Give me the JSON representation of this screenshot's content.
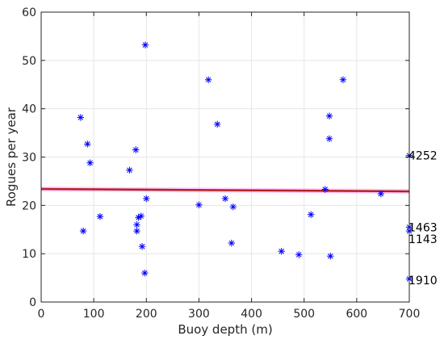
{
  "chart_data": {
    "type": "scatter",
    "title": "",
    "xlabel": "Buoy depth (m)",
    "ylabel": "Rogues per year",
    "xlim": [
      0,
      700
    ],
    "ylim": [
      0,
      60
    ],
    "xticks": [
      0,
      100,
      200,
      300,
      400,
      500,
      600,
      700
    ],
    "yticks": [
      0,
      10,
      20,
      30,
      40,
      50,
      60
    ],
    "grid": true,
    "colors": {
      "points": "#0000ff",
      "trend": "#b22222",
      "trend_band": "#ff66ff",
      "grid": "#e6e6e6"
    },
    "series": [
      {
        "marker": "asterisk",
        "points": [
          [
            75,
            38.2
          ],
          [
            80,
            14.7
          ],
          [
            88,
            32.7
          ],
          [
            93,
            28.8
          ],
          [
            112,
            17.7
          ],
          [
            168,
            27.3
          ],
          [
            180,
            31.5
          ],
          [
            182,
            16.0
          ],
          [
            182,
            14.7
          ],
          [
            185,
            17.5
          ],
          [
            190,
            17.8
          ],
          [
            192,
            11.5
          ],
          [
            197,
            6.0
          ],
          [
            198,
            53.2
          ],
          [
            200,
            21.4
          ],
          [
            300,
            20.1
          ],
          [
            318,
            46.0
          ],
          [
            335,
            36.8
          ],
          [
            350,
            21.4
          ],
          [
            362,
            12.2
          ],
          [
            365,
            19.7
          ],
          [
            457,
            10.5
          ],
          [
            490,
            9.8
          ],
          [
            513,
            18.1
          ],
          [
            540,
            23.3
          ],
          [
            548,
            38.5
          ],
          [
            548,
            33.8
          ],
          [
            550,
            9.5
          ],
          [
            574,
            46.0
          ],
          [
            646,
            22.4
          ],
          [
            700,
            30.3
          ],
          [
            700,
            15.5
          ],
          [
            700,
            14.7
          ],
          [
            700,
            4.8
          ]
        ]
      },
      {
        "type": "line",
        "points": [
          [
            0,
            23.4
          ],
          [
            700,
            22.9
          ]
        ]
      }
    ],
    "annotations": [
      {
        "text": "4252",
        "x": 700,
        "y": 30.3
      },
      {
        "text": "1463",
        "x": 700,
        "y": 15.5
      },
      {
        "text": "1143",
        "x": 700,
        "y": 13.0
      },
      {
        "text": "1910",
        "x": 700,
        "y": 4.5
      }
    ]
  }
}
